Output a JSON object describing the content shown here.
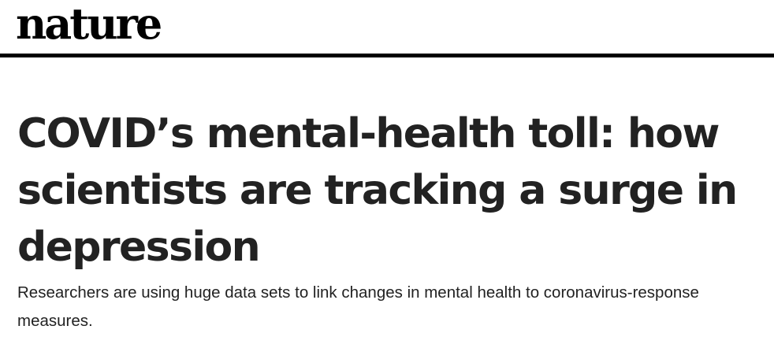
{
  "masthead": {
    "logo_text": "nature"
  },
  "article": {
    "title": "COVID’s mental-health toll: how scientists are tracking a surge in depression",
    "standfirst": "Researchers are using huge data sets to link changes in mental health to coronavirus-response measures."
  },
  "colors": {
    "masthead_rule": "#000000",
    "text": "#222222",
    "background": "#ffffff"
  }
}
